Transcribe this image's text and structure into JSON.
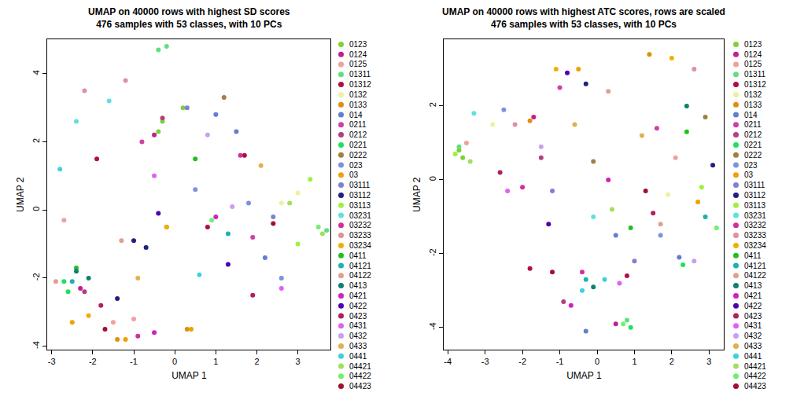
{
  "chart_data": [
    {
      "type": "scatter",
      "title": "UMAP on 40000 rows with highest SD scores\n476 samples with 53 classes, with 10 PCs",
      "x_label": "UMAP 1",
      "y_label": "UMAP 2",
      "xlim": [
        -3.1,
        3.8
      ],
      "xticks": [
        -3,
        -2,
        -1,
        0,
        1,
        2,
        3
      ],
      "ylim": [
        -4.1,
        5.0
      ],
      "yticks": [
        -4,
        -2,
        0,
        2,
        4
      ],
      "marker": "circle",
      "series": [
        {
          "name": "0123",
          "color": "#7fd13b",
          "x": [
            -0.4,
            -0.3,
            0.2
          ],
          "y": [
            2.3,
            2.6,
            3.0
          ]
        },
        {
          "name": "0124",
          "color": "#c0208f",
          "x": [
            -0.5,
            -2.3
          ],
          "y": [
            2.2,
            -2.3
          ]
        },
        {
          "name": "0125",
          "color": "#f0a0a0",
          "x": [
            -1.5,
            -2.7,
            -1.0
          ],
          "y": [
            -3.3,
            -0.3,
            -3.2
          ]
        },
        {
          "name": "01311",
          "color": "#5fe07f",
          "x": [
            -0.4,
            -0.2,
            3.7
          ],
          "y": [
            4.7,
            4.8,
            -0.6
          ]
        },
        {
          "name": "01312",
          "color": "#b01040",
          "x": [
            1.7,
            -1.9,
            0.8
          ],
          "y": [
            1.6,
            1.5,
            -0.5
          ]
        },
        {
          "name": "0132",
          "color": "#f0f0a0",
          "x": [
            2.6,
            3.0
          ],
          "y": [
            0.2,
            0.5
          ]
        },
        {
          "name": "0133",
          "color": "#e08f10",
          "x": [
            -1.4,
            0.3
          ],
          "y": [
            -3.8,
            -3.5
          ]
        },
        {
          "name": "014",
          "color": "#5f7fd0",
          "x": [
            1.0,
            1.5,
            2.2
          ],
          "y": [
            2.8,
            2.3,
            -1.4
          ]
        },
        {
          "name": "0211",
          "color": "#d040a0",
          "x": [
            -0.8,
            1.9
          ],
          "y": [
            2.0,
            -0.8
          ]
        },
        {
          "name": "0212",
          "color": "#b04080",
          "x": [
            -0.3,
            -2.2
          ],
          "y": [
            2.7,
            -2.4
          ]
        },
        {
          "name": "0221",
          "color": "#20e060",
          "x": [
            -2.7,
            -2.6
          ],
          "y": [
            -2.1,
            -2.4
          ]
        },
        {
          "name": "0222",
          "color": "#a08040",
          "x": [
            -0.2,
            1.2
          ],
          "y": [
            -0.5,
            3.3
          ]
        },
        {
          "name": "023",
          "color": "#8090e0",
          "x": [
            0.5,
            1.8,
            2.6
          ],
          "y": [
            0.6,
            0.2,
            -2.0
          ]
        },
        {
          "name": "03",
          "color": "#f0a000",
          "x": [
            -2.5,
            -1.2,
            0.4
          ],
          "y": [
            -3.3,
            -3.8,
            -3.5
          ]
        },
        {
          "name": "03111",
          "color": "#8080d0",
          "x": [
            0.3,
            2.4
          ],
          "y": [
            3.0,
            -0.2
          ]
        },
        {
          "name": "03112",
          "color": "#202080",
          "x": [
            -0.7,
            -1.0,
            -1.4
          ],
          "y": [
            -1.1,
            -0.9,
            -2.6
          ]
        },
        {
          "name": "03113",
          "color": "#a0f040",
          "x": [
            3.0,
            3.3
          ],
          "y": [
            -1.0,
            0.9
          ]
        },
        {
          "name": "03231",
          "color": "#60e0e0",
          "x": [
            -2.4,
            -1.6
          ],
          "y": [
            2.6,
            3.2
          ]
        },
        {
          "name": "03232",
          "color": "#d030a0",
          "x": [
            1.6,
            -0.9
          ],
          "y": [
            1.6,
            -3.7
          ]
        },
        {
          "name": "03233",
          "color": "#e090a0",
          "x": [
            -1.2,
            -2.2
          ],
          "y": [
            3.8,
            3.5
          ]
        },
        {
          "name": "03234",
          "color": "#f0b000",
          "x": [
            -0.2,
            -2.1
          ],
          "y": [
            -0.5,
            -3.1
          ]
        },
        {
          "name": "0411",
          "color": "#20c020",
          "x": [
            0.5,
            -2.4
          ],
          "y": [
            1.5,
            -1.7
          ]
        },
        {
          "name": "04121",
          "color": "#20b0b0",
          "x": [
            -2.5,
            1.3
          ],
          "y": [
            -2.1,
            -0.7
          ]
        },
        {
          "name": "04122",
          "color": "#e0a090",
          "x": [
            -2.9,
            -1.3
          ],
          "y": [
            -2.1,
            -0.9
          ]
        },
        {
          "name": "0413",
          "color": "#108070",
          "x": [
            -2.4,
            -2.1
          ],
          "y": [
            -1.8,
            -2.0
          ]
        },
        {
          "name": "0421",
          "color": "#d020c0",
          "x": [
            1.0,
            -0.5
          ],
          "y": [
            -0.2,
            -3.6
          ]
        },
        {
          "name": "0422",
          "color": "#5000b0",
          "x": [
            -0.4,
            1.3
          ],
          "y": [
            -0.1,
            -1.6
          ]
        },
        {
          "name": "0423",
          "color": "#b02060",
          "x": [
            1.9,
            -1.8
          ],
          "y": [
            -2.5,
            -2.8
          ]
        },
        {
          "name": "0431",
          "color": "#e060f0",
          "x": [
            -0.5,
            2.6
          ],
          "y": [
            1.0,
            -2.3
          ]
        },
        {
          "name": "0432",
          "color": "#c8a0f0",
          "x": [
            1.4,
            0.8
          ],
          "y": [
            0.1,
            2.2
          ]
        },
        {
          "name": "0433",
          "color": "#e0b050",
          "x": [
            2.1,
            -0.9
          ],
          "y": [
            1.3,
            -2.0
          ]
        },
        {
          "name": "0441",
          "color": "#40d0e0",
          "x": [
            -2.8,
            0.6
          ],
          "y": [
            1.2,
            -1.9
          ]
        },
        {
          "name": "04421",
          "color": "#a0e060",
          "x": [
            2.8,
            3.6
          ],
          "y": [
            0.2,
            -0.7
          ]
        },
        {
          "name": "04422",
          "color": "#70f070",
          "x": [
            3.5,
            0.9
          ],
          "y": [
            -0.5,
            -0.3
          ]
        },
        {
          "name": "04423",
          "color": "#a01030",
          "x": [
            2.4,
            -1.7
          ],
          "y": [
            -0.4,
            -3.5
          ]
        }
      ]
    },
    {
      "type": "scatter",
      "title": "UMAP on 40000 rows with highest ATC scores, rows are scaled\n476 samples with 53 classes, with 10 PCs",
      "x_label": "UMAP 1",
      "y_label": "UMAP 2",
      "xlim": [
        -4.1,
        3.4
      ],
      "xticks": [
        -4,
        -3,
        -2,
        -1,
        0,
        1,
        2,
        3
      ],
      "ylim": [
        -4.6,
        3.8
      ],
      "yticks": [
        -4,
        -2,
        0,
        2
      ],
      "marker": "circle",
      "series": [
        {
          "name": "0123",
          "color": "#7fd13b",
          "x": [
            -3.7,
            -3.6
          ],
          "y": [
            0.8,
            0.6
          ]
        },
        {
          "name": "0124",
          "color": "#c0208f",
          "x": [
            -1.7,
            0.5
          ],
          "y": [
            1.7,
            -3.9
          ]
        },
        {
          "name": "0125",
          "color": "#f0a0a0",
          "x": [
            -3.5,
            2.1
          ],
          "y": [
            1.0,
            0.6
          ]
        },
        {
          "name": "01311",
          "color": "#5fe07f",
          "x": [
            0.8,
            -3.7
          ],
          "y": [
            -3.8,
            0.9
          ]
        },
        {
          "name": "01312",
          "color": "#b01040",
          "x": [
            -1.8,
            0.8
          ],
          "y": [
            -2.4,
            -2.6
          ]
        },
        {
          "name": "0132",
          "color": "#f0f0a0",
          "x": [
            1.9,
            -2.8
          ],
          "y": [
            -0.4,
            1.5
          ]
        },
        {
          "name": "0133",
          "color": "#e08f10",
          "x": [
            -1.8,
            1.4
          ],
          "y": [
            1.6,
            3.4
          ]
        },
        {
          "name": "014",
          "color": "#5f7fd0",
          "x": [
            -0.3,
            0.5,
            2.2
          ],
          "y": [
            -4.1,
            -1.5,
            -2.1
          ]
        },
        {
          "name": "0211",
          "color": "#d040a0",
          "x": [
            -1.0,
            1.6
          ],
          "y": [
            2.5,
            1.4
          ]
        },
        {
          "name": "0212",
          "color": "#b04080",
          "x": [
            -0.9,
            -1.5
          ],
          "y": [
            -3.3,
            0.6
          ]
        },
        {
          "name": "0221",
          "color": "#20e060",
          "x": [
            0.9,
            2.3
          ],
          "y": [
            -4.0,
            -2.3
          ]
        },
        {
          "name": "0222",
          "color": "#a08040",
          "x": [
            -0.1,
            2.9
          ],
          "y": [
            0.5,
            1.7
          ]
        },
        {
          "name": "023",
          "color": "#8090e0",
          "x": [
            -2.5,
            1.7
          ],
          "y": [
            1.9,
            -1.5
          ]
        },
        {
          "name": "03",
          "color": "#f0a000",
          "x": [
            -0.5,
            2.7
          ],
          "y": [
            3.0,
            -0.6
          ]
        },
        {
          "name": "03111",
          "color": "#8080d0",
          "x": [
            -1.2,
            1.0
          ],
          "y": [
            -0.3,
            -2.2
          ]
        },
        {
          "name": "03112",
          "color": "#202080",
          "x": [
            -0.3,
            3.1
          ],
          "y": [
            2.6,
            0.4
          ]
        },
        {
          "name": "03113",
          "color": "#a0f040",
          "x": [
            -3.8,
            2.8
          ],
          "y": [
            0.7,
            -0.2
          ]
        },
        {
          "name": "03231",
          "color": "#60e0e0",
          "x": [
            -3.3,
            -0.1
          ],
          "y": [
            1.8,
            -1.0
          ]
        },
        {
          "name": "03232",
          "color": "#d030a0",
          "x": [
            -2.0,
            -0.4
          ],
          "y": [
            -0.2,
            -2.5
          ]
        },
        {
          "name": "03233",
          "color": "#e090a0",
          "x": [
            -2.2,
            2.6
          ],
          "y": [
            1.5,
            3.0
          ]
        },
        {
          "name": "03234",
          "color": "#f0b000",
          "x": [
            -1.1,
            2.0
          ],
          "y": [
            3.0,
            3.3
          ]
        },
        {
          "name": "0411",
          "color": "#20c020",
          "x": [
            2.4,
            0.9
          ],
          "y": [
            1.3,
            -1.3
          ]
        },
        {
          "name": "04121",
          "color": "#20b0b0",
          "x": [
            -0.3,
            2.9
          ],
          "y": [
            -2.7,
            -1.0
          ]
        },
        {
          "name": "04122",
          "color": "#e0a090",
          "x": [
            0.3,
            1.7
          ],
          "y": [
            2.4,
            -1.2
          ]
        },
        {
          "name": "0413",
          "color": "#108070",
          "x": [
            2.4,
            -0.1
          ],
          "y": [
            2.0,
            -2.9
          ]
        },
        {
          "name": "0421",
          "color": "#d020c0",
          "x": [
            -0.7,
            0.3
          ],
          "y": [
            -3.4,
            0.0
          ]
        },
        {
          "name": "0422",
          "color": "#5000b0",
          "x": [
            -0.8,
            -1.3
          ],
          "y": [
            2.9,
            -1.2
          ]
        },
        {
          "name": "0423",
          "color": "#b02060",
          "x": [
            1.5,
            -2.6
          ],
          "y": [
            -0.9,
            0.2
          ]
        },
        {
          "name": "0431",
          "color": "#e060f0",
          "x": [
            -2.4,
            0.6
          ],
          "y": [
            -0.3,
            -2.8
          ]
        },
        {
          "name": "0432",
          "color": "#c8a0f0",
          "x": [
            2.6,
            -1.5
          ],
          "y": [
            -2.2,
            0.9
          ]
        },
        {
          "name": "0433",
          "color": "#e0b050",
          "x": [
            1.2,
            -0.6
          ],
          "y": [
            1.2,
            1.5
          ]
        },
        {
          "name": "0441",
          "color": "#40d0e0",
          "x": [
            -0.4,
            0.2
          ],
          "y": [
            -3.0,
            -2.7
          ]
        },
        {
          "name": "04421",
          "color": "#a0e060",
          "x": [
            -3.4,
            0.4
          ],
          "y": [
            0.5,
            -0.8
          ]
        },
        {
          "name": "04422",
          "color": "#70f070",
          "x": [
            0.7,
            3.2
          ],
          "y": [
            -3.9,
            -1.3
          ]
        },
        {
          "name": "04423",
          "color": "#a01030",
          "x": [
            -1.2,
            1.3
          ],
          "y": [
            -2.5,
            -0.3
          ]
        }
      ]
    }
  ]
}
